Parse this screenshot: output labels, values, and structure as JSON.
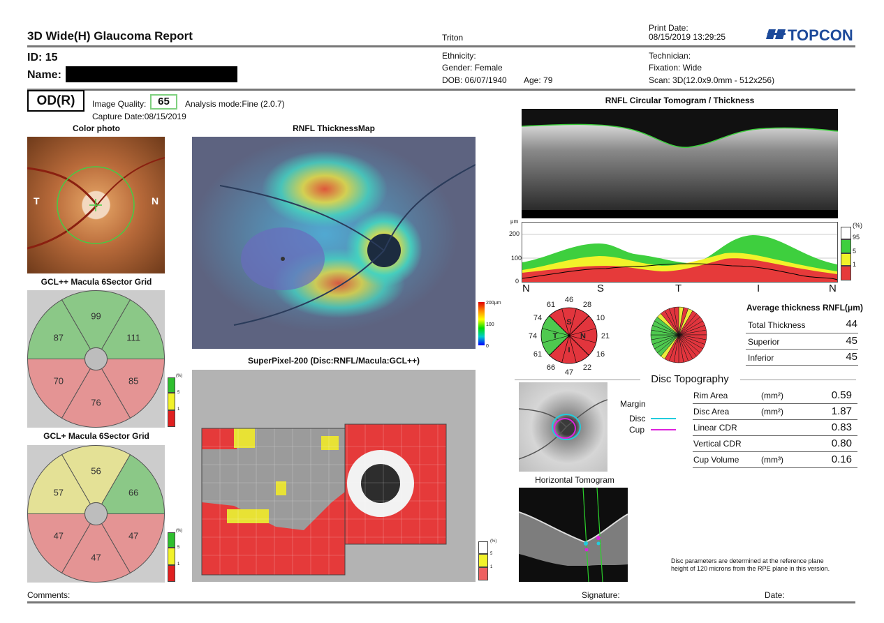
{
  "header": {
    "title": "3D Wide(H) Glaucoma Report",
    "device": "Triton",
    "print_date_label": "Print Date:",
    "print_date": "08/15/2019 13:29:25",
    "brand": "TOPCON",
    "id_label": "ID: 15",
    "name_label": "Name:",
    "ethnicity": "Ethnicity:",
    "gender": "Gender: Female",
    "dob": "DOB: 06/07/1940",
    "age": "Age: 79",
    "technician": "Technician:",
    "fixation": "Fixation: Wide",
    "scan": "Scan: 3D(12.0x9.0mm - 512x256)"
  },
  "study": {
    "eye": "OD(R)",
    "image_quality_label": "Image Quality:",
    "image_quality": "65",
    "analysis_mode": "Analysis mode:Fine (2.0.7)",
    "capture_date": "Capture Date:08/15/2019"
  },
  "color_photo": {
    "title": "Color photo",
    "t_label": "T",
    "n_label": "N"
  },
  "gcl_pp": {
    "title": "GCL++ Macula 6Sector Grid",
    "values": [
      "99",
      "87",
      "111",
      "70",
      "85",
      "76"
    ],
    "colors": [
      "#7fc77a",
      "#7fc77a",
      "#7fc77a",
      "#e88a8a",
      "#e88a8a",
      "#e88a8a"
    ]
  },
  "gcl_p": {
    "title": "GCL+ Macula 6Sector Grid",
    "values": [
      "56",
      "57",
      "66",
      "47",
      "47",
      "47"
    ],
    "colors": [
      "#e8e48c",
      "#e8e48c",
      "#7fc77a",
      "#e88a8a",
      "#e88a8a",
      "#e88a8a"
    ]
  },
  "small_scale": {
    "pct": "(%)",
    "v5": "5",
    "v1": "1"
  },
  "rnfl_map": {
    "title": "RNFL ThicknessMap",
    "scale_top": "200μm",
    "scale_mid": "100",
    "scale_bot": "0"
  },
  "superpixel": {
    "title": "SuperPixel-200 (Disc:RNFL/Macula:GCL++)",
    "pct": "(%)",
    "v5": "5",
    "v1": "1"
  },
  "circular": {
    "title": "RNFL Circular Tomogram / Thickness",
    "unit": "μm",
    "y_ticks": [
      "200",
      "100",
      "0"
    ],
    "x_labels": [
      "N",
      "S",
      "T",
      "I",
      "N"
    ],
    "legend": [
      "(%)",
      "95",
      "5",
      "1"
    ]
  },
  "clock": {
    "values": [
      "46",
      "28",
      "10",
      "21",
      "16",
      "22",
      "47",
      "66",
      "61",
      "74",
      "74",
      "61"
    ],
    "quad": [
      "S",
      "N",
      "I",
      "T"
    ]
  },
  "rnfl_avg": {
    "title": "Average thickness RNFL(μm)",
    "rows": [
      {
        "label": "Total Thickness",
        "value": "44"
      },
      {
        "label": "Superior",
        "value": "45"
      },
      {
        "label": "Inferior",
        "value": "45"
      }
    ]
  },
  "disc": {
    "title": "Disc Topography",
    "margin": "Margin",
    "disc_label": "Disc",
    "cup_label": "Cup",
    "disc_color": "#22ccdd",
    "cup_color": "#dd22dd",
    "rows": [
      {
        "label": "Rim Area",
        "unit": "(mm²)",
        "value": "0.59"
      },
      {
        "label": "Disc Area",
        "unit": "(mm²)",
        "value": "1.87"
      },
      {
        "label": "Linear CDR",
        "unit": "",
        "value": "0.83"
      },
      {
        "label": "Vertical CDR",
        "unit": "",
        "value": "0.80"
      },
      {
        "label": "Cup Volume",
        "unit": "(mm³)",
        "value": "0.16"
      }
    ],
    "horizontal_title": "Horizontal Tomogram",
    "note1": "Disc parameters are determined at the reference plane",
    "note2": "height of 120 microns from the RPE plane in this version."
  },
  "footer": {
    "comments": "Comments:",
    "signature": "Signature:",
    "date": "Date:"
  }
}
